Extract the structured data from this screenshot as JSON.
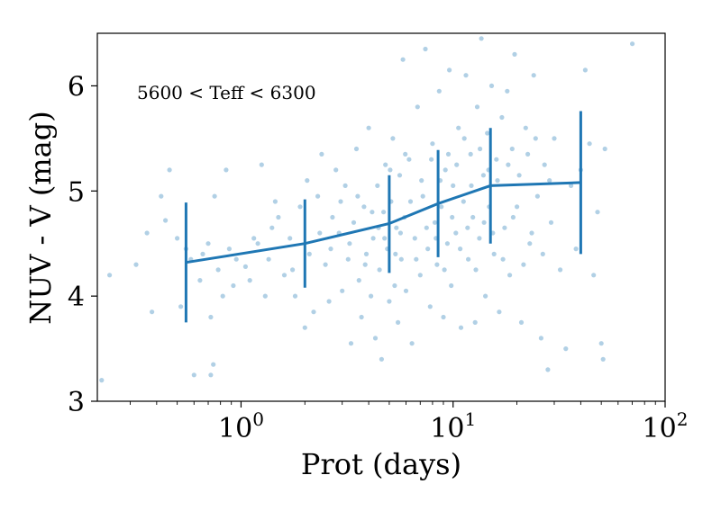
{
  "chart_data": {
    "type": "scatter",
    "annotation": "5600 < Teff < 6300",
    "xlabel": "Prot (days)",
    "ylabel": "NUV - V (mag)",
    "xscale": "log",
    "xlim": [
      0.21,
      100
    ],
    "ylim": [
      3.0,
      6.5
    ],
    "grid": false,
    "legend": "none",
    "x_ticks": [
      {
        "value": 1,
        "base": "10",
        "exp": "0"
      },
      {
        "value": 10,
        "base": "10",
        "exp": "1"
      },
      {
        "value": 100,
        "base": "10",
        "exp": "2"
      }
    ],
    "y_ticks": [
      {
        "value": 3,
        "label": "3"
      },
      {
        "value": 4,
        "label": "4"
      },
      {
        "value": 5,
        "label": "5"
      },
      {
        "value": 6,
        "label": "6"
      }
    ],
    "colors": {
      "points": "#1f77b4",
      "line": "#1f77b4"
    },
    "series": [
      {
        "kind": "scatter",
        "points": [
          [
            0.22,
            3.2
          ],
          [
            0.24,
            4.2
          ],
          [
            0.32,
            4.3
          ],
          [
            0.36,
            4.6
          ],
          [
            0.38,
            3.85
          ],
          [
            0.42,
            4.95
          ],
          [
            0.44,
            4.72
          ],
          [
            0.46,
            5.2
          ],
          [
            0.5,
            4.55
          ],
          [
            0.52,
            3.9
          ],
          [
            0.55,
            4.45
          ],
          [
            0.58,
            4.35
          ],
          [
            0.6,
            3.25
          ],
          [
            0.64,
            4.15
          ],
          [
            0.66,
            4.4
          ],
          [
            0.7,
            4.5
          ],
          [
            0.72,
            3.25
          ],
          [
            0.72,
            3.8
          ],
          [
            0.74,
            3.35
          ],
          [
            0.75,
            4.95
          ],
          [
            0.78,
            4.25
          ],
          [
            0.82,
            4.0
          ],
          [
            0.85,
            5.2
          ],
          [
            0.88,
            4.45
          ],
          [
            0.92,
            4.1
          ],
          [
            0.95,
            4.35
          ],
          [
            1.05,
            4.28
          ],
          [
            1.1,
            4.15
          ],
          [
            1.2,
            4.5
          ],
          [
            1.25,
            5.25
          ],
          [
            1.3,
            4.0
          ],
          [
            1.35,
            4.35
          ],
          [
            1.4,
            4.65
          ],
          [
            1.5,
            4.75
          ],
          [
            1.6,
            4.2
          ],
          [
            1.7,
            4.55
          ],
          [
            1.8,
            4.0
          ],
          [
            1.9,
            4.85
          ],
          [
            2.0,
            3.7
          ],
          [
            2.1,
            4.4
          ],
          [
            2.2,
            3.85
          ],
          [
            2.3,
            4.95
          ],
          [
            2.4,
            5.35
          ],
          [
            2.5,
            4.3
          ],
          [
            2.6,
            3.95
          ],
          [
            2.7,
            4.75
          ],
          [
            2.8,
            5.2
          ],
          [
            2.9,
            4.6
          ],
          [
            3.0,
            4.05
          ],
          [
            3.1,
            5.05
          ],
          [
            3.2,
            4.35
          ],
          [
            3.3,
            3.55
          ],
          [
            3.4,
            4.7
          ],
          [
            3.5,
            5.4
          ],
          [
            3.6,
            4.15
          ],
          [
            3.7,
            3.8
          ],
          [
            3.8,
            4.85
          ],
          [
            3.9,
            4.4
          ],
          [
            4.0,
            5.6
          ],
          [
            4.1,
            4.0
          ],
          [
            4.2,
            4.55
          ],
          [
            4.3,
            3.6
          ],
          [
            4.4,
            5.05
          ],
          [
            4.5,
            4.25
          ],
          [
            4.6,
            3.4
          ],
          [
            4.7,
            4.8
          ],
          [
            4.8,
            5.25
          ],
          [
            4.9,
            4.45
          ],
          [
            5.0,
            3.95
          ],
          [
            5.1,
            4.9
          ],
          [
            5.2,
            5.5
          ],
          [
            5.3,
            4.1
          ],
          [
            5.4,
            4.65
          ],
          [
            5.5,
            3.75
          ],
          [
            5.6,
            5.15
          ],
          [
            5.7,
            4.35
          ],
          [
            5.8,
            6.25
          ],
          [
            5.9,
            4.75
          ],
          [
            6.0,
            4.05
          ],
          [
            6.2,
            5.3
          ],
          [
            6.4,
            3.55
          ],
          [
            6.6,
            4.55
          ],
          [
            6.8,
            5.8
          ],
          [
            7.0,
            4.2
          ],
          [
            7.2,
            4.95
          ],
          [
            7.4,
            6.35
          ],
          [
            7.6,
            4.45
          ],
          [
            7.8,
            3.9
          ],
          [
            8.0,
            5.45
          ],
          [
            8.2,
            4.7
          ],
          [
            8.4,
            4.3
          ],
          [
            8.6,
            5.95
          ],
          [
            8.8,
            4.85
          ],
          [
            9.0,
            3.8
          ],
          [
            9.2,
            5.2
          ],
          [
            9.4,
            4.5
          ],
          [
            9.6,
            6.15
          ],
          [
            9.8,
            4.1
          ],
          [
            10.0,
            5.05
          ],
          [
            10.3,
            4.6
          ],
          [
            10.6,
            5.6
          ],
          [
            10.9,
            3.7
          ],
          [
            11.2,
            4.9
          ],
          [
            11.5,
            6.1
          ],
          [
            11.8,
            4.35
          ],
          [
            12.1,
            5.35
          ],
          [
            12.4,
            4.75
          ],
          [
            12.7,
            3.75
          ],
          [
            13.0,
            5.8
          ],
          [
            13.3,
            4.55
          ],
          [
            13.6,
            6.45
          ],
          [
            13.9,
            5.15
          ],
          [
            14.2,
            4.0
          ],
          [
            14.5,
            5.55
          ],
          [
            14.8,
            4.85
          ],
          [
            15.2,
            6.0
          ],
          [
            15.6,
            4.4
          ],
          [
            16.0,
            5.3
          ],
          [
            16.5,
            3.85
          ],
          [
            17.0,
            5.7
          ],
          [
            17.5,
            4.65
          ],
          [
            18.0,
            5.95
          ],
          [
            18.5,
            4.2
          ],
          [
            19.0,
            5.4
          ],
          [
            19.5,
            6.3
          ],
          [
            20.0,
            4.85
          ],
          [
            21.0,
            3.75
          ],
          [
            22.0,
            5.6
          ],
          [
            23.0,
            4.5
          ],
          [
            24.0,
            6.1
          ],
          [
            25.0,
            4.95
          ],
          [
            26.0,
            3.6
          ],
          [
            27.0,
            5.25
          ],
          [
            28.0,
            3.3
          ],
          [
            29.0,
            4.7
          ],
          [
            30.0,
            5.5
          ],
          [
            32.0,
            4.25
          ],
          [
            34.0,
            3.5
          ],
          [
            36.0,
            5.05
          ],
          [
            38.0,
            4.45
          ],
          [
            40.0,
            5.2
          ],
          [
            42.0,
            6.15
          ],
          [
            44.0,
            5.45
          ],
          [
            46.0,
            4.2
          ],
          [
            48.0,
            4.8
          ],
          [
            50.0,
            3.55
          ],
          [
            51.0,
            3.4
          ],
          [
            52.0,
            5.4
          ],
          [
            70.0,
            6.4
          ],
          [
            1.15,
            4.55
          ],
          [
            1.45,
            4.9
          ],
          [
            1.75,
            4.25
          ],
          [
            2.05,
            5.1
          ],
          [
            2.35,
            4.6
          ],
          [
            2.65,
            4.45
          ],
          [
            2.95,
            4.9
          ],
          [
            3.25,
            4.5
          ],
          [
            3.55,
            4.95
          ],
          [
            3.85,
            4.3
          ],
          [
            4.15,
            4.8
          ],
          [
            4.45,
            4.65
          ],
          [
            4.75,
            4.55
          ],
          [
            5.05,
            5.2
          ],
          [
            5.35,
            4.4
          ],
          [
            5.65,
            4.6
          ],
          [
            5.95,
            5.35
          ],
          [
            6.3,
            4.9
          ],
          [
            6.7,
            4.35
          ],
          [
            7.1,
            5.1
          ],
          [
            7.5,
            4.65
          ],
          [
            7.9,
            5.3
          ],
          [
            8.3,
            4.55
          ],
          [
            8.7,
            5.1
          ],
          [
            9.1,
            4.25
          ],
          [
            9.5,
            5.35
          ],
          [
            9.9,
            4.75
          ],
          [
            10.4,
            5.25
          ],
          [
            10.8,
            4.45
          ],
          [
            11.3,
            5.5
          ],
          [
            11.7,
            4.65
          ],
          [
            12.2,
            5.05
          ],
          [
            12.8,
            4.25
          ],
          [
            13.4,
            5.4
          ],
          [
            14.0,
            4.7
          ],
          [
            14.7,
            5.2
          ],
          [
            15.4,
            4.6
          ],
          [
            16.2,
            5.1
          ],
          [
            17.2,
            4.35
          ],
          [
            18.2,
            5.25
          ],
          [
            19.2,
            4.75
          ],
          [
            20.5,
            5.15
          ],
          [
            21.5,
            4.3
          ],
          [
            22.5,
            5.35
          ],
          [
            23.5,
            4.6
          ],
          [
            24.5,
            5.5
          ],
          [
            26.5,
            4.4
          ],
          [
            28.5,
            5.1
          ]
        ]
      },
      {
        "kind": "binned-mean",
        "points": [
          {
            "x": 0.55,
            "y": 4.32,
            "lo": 3.75,
            "hi": 4.89
          },
          {
            "x": 2.0,
            "y": 4.5,
            "lo": 4.08,
            "hi": 4.92
          },
          {
            "x": 5.0,
            "y": 4.69,
            "lo": 4.22,
            "hi": 5.15
          },
          {
            "x": 8.5,
            "y": 4.88,
            "lo": 4.37,
            "hi": 5.39
          },
          {
            "x": 15.0,
            "y": 5.05,
            "lo": 4.5,
            "hi": 5.6
          },
          {
            "x": 40.0,
            "y": 5.08,
            "lo": 4.4,
            "hi": 5.76
          }
        ]
      }
    ]
  }
}
